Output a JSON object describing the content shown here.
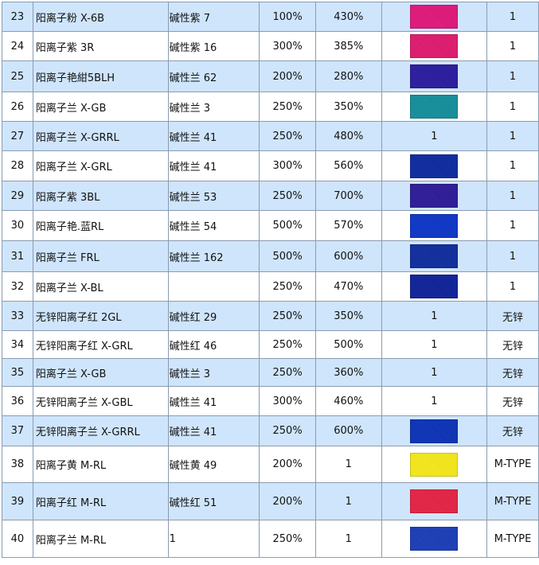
{
  "rows": [
    {
      "no": "23",
      "name": "阳离子粉 X-6B",
      "ci": "碱性紫 7",
      "s1": "100%",
      "s2": "430%",
      "swatch_text": "",
      "color": "#e0177b",
      "note": "1"
    },
    {
      "no": "24",
      "name": "阳离子紫 3R",
      "ci": "碱性紫 16",
      "s1": "300%",
      "s2": "385%",
      "swatch_text": "",
      "color": "#e01a6e",
      "note": "1"
    },
    {
      "no": "25",
      "name": "阳离子艳紺5BLH",
      "ci": "碱性兰 62",
      "s1": "200%",
      "s2": "280%",
      "swatch_text": "",
      "color": "#2a1a9e",
      "note": "1"
    },
    {
      "no": "26",
      "name": "阳离子兰 X-GB",
      "ci": "碱性兰 3",
      "s1": "250%",
      "s2": "350%",
      "swatch_text": "",
      "color": "#138f9c",
      "note": "1"
    },
    {
      "no": "27",
      "name": "阳离子兰 X-GRRL",
      "ci": "碱性兰 41",
      "s1": "250%",
      "s2": "480%",
      "swatch_text": "1",
      "color": "",
      "note": "1"
    },
    {
      "no": "28",
      "name": "阳离子兰 X-GRL",
      "ci": "碱性兰 41",
      "s1": "300%",
      "s2": "560%",
      "swatch_text": "",
      "color": "#0d2aa0",
      "note": "1"
    },
    {
      "no": "29",
      "name": "阳离子紫 3BL",
      "ci": "碱性兰 53",
      "s1": "250%",
      "s2": "700%",
      "swatch_text": "",
      "color": "#2c1a99",
      "note": "1"
    },
    {
      "no": "30",
      "name": "阳离子艳.蓝RL",
      "ci": "碱性兰 54",
      "s1": "500%",
      "s2": "570%",
      "swatch_text": "",
      "color": "#0d36c8",
      "note": "1"
    },
    {
      "no": "31",
      "name": "阳离子兰 FRL",
      "ci": "碱性兰 162",
      "s1": "500%",
      "s2": "600%",
      "swatch_text": "",
      "color": "#0e2c9e",
      "note": "1"
    },
    {
      "no": "32",
      "name": "阳离子兰 X-BL",
      "ci": "",
      "s1": "250%",
      "s2": "470%",
      "swatch_text": "",
      "color": "#0d229a",
      "note": "1"
    },
    {
      "no": "33",
      "name": "无锌阳离子红 2GL",
      "ci": "碱性红 29",
      "s1": "250%",
      "s2": "350%",
      "swatch_text": "1",
      "color": "",
      "note": "无锌"
    },
    {
      "no": "34",
      "name": "无锌阳离子红 X-GRL",
      "ci": "碱性红 46",
      "s1": "250%",
      "s2": "500%",
      "swatch_text": "1",
      "color": "",
      "note": "无锌"
    },
    {
      "no": "35",
      "name": "阳离子兰 X-GB",
      "ci": "碱性兰 3",
      "s1": "250%",
      "s2": "360%",
      "swatch_text": "1",
      "color": "",
      "note": "无锌"
    },
    {
      "no": "36",
      "name": "无锌阳离子兰 X-GBL",
      "ci": "碱性兰 41",
      "s1": "300%",
      "s2": "460%",
      "swatch_text": "1",
      "color": "",
      "note": "无锌"
    },
    {
      "no": "37",
      "name": "无锌阳离子兰 X-GRRL",
      "ci": "碱性兰 41",
      "s1": "250%",
      "s2": "600%",
      "swatch_text": "",
      "color": "#0b33b8",
      "note": "无锌"
    },
    {
      "no": "38",
      "name": "阳离子黄 M-RL",
      "ci": "碱性黄 49",
      "s1": "200%",
      "s2": "1",
      "swatch_text": "",
      "color": "#f6ea18",
      "note": "M-TYPE"
    },
    {
      "no": "39",
      "name": "阳离子红 M-RL",
      "ci": "碱性红 51",
      "s1": "200%",
      "s2": "1",
      "swatch_text": "",
      "color": "#e62346",
      "note": "M-TYPE"
    },
    {
      "no": "40",
      "name": "阳离子兰 M-RL",
      "ci": "1",
      "s1": "250%",
      "s2": "1",
      "swatch_text": "",
      "color": "#1a3db8",
      "note": "M-TYPE"
    }
  ]
}
